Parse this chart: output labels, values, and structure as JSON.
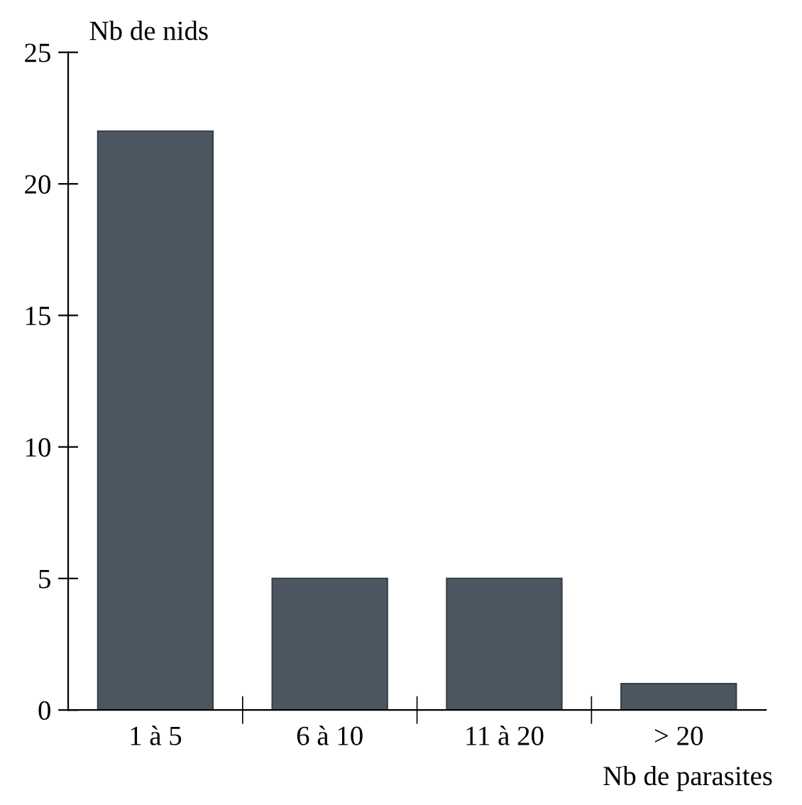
{
  "chart_data": {
    "type": "bar",
    "xlabel": "Nb de parasites",
    "ylabel": "Nb de nids",
    "categories": [
      "1 à 5",
      "6 à 10",
      "11 à 20",
      "> 20"
    ],
    "values": [
      22,
      5,
      5,
      1
    ],
    "color": "#4b5660",
    "ylim": [
      0,
      25
    ],
    "yticks": [
      0,
      5,
      10,
      15,
      20,
      25
    ],
    "grid": false,
    "legend": false
  }
}
